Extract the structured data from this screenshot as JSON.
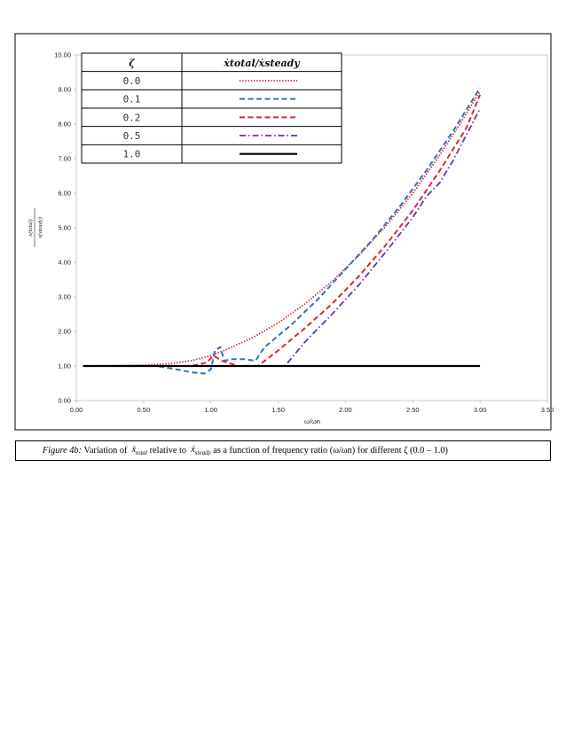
{
  "chart_data": {
    "type": "line",
    "title": "",
    "xlabel": "ω/ωn",
    "ylabel_num": "x(total)",
    "ylabel_den": "x(steady)",
    "xlim": [
      0,
      3.5
    ],
    "ylim": [
      0,
      10
    ],
    "xticks": [
      "0.00",
      "0.50",
      "1.00",
      "1.50",
      "2.00",
      "2.50",
      "3.00",
      "3.50"
    ],
    "yticks": [
      "0.00",
      "1.00",
      "2.00",
      "3.00",
      "4.00",
      "5.00",
      "6.00",
      "7.00",
      "8.00",
      "9.00",
      "10.00"
    ],
    "legend_header": {
      "col1": "ζ",
      "col2": "ẋtotal/ẋsteady"
    },
    "legend_placement": "top-left",
    "series": [
      {
        "name": "0.0",
        "color": "#c0282d",
        "style": "dotted",
        "x": [
          0.05,
          0.5,
          0.7,
          0.85,
          1.0,
          1.1,
          1.3,
          1.5,
          1.7,
          1.9,
          2.1,
          2.3,
          2.5,
          2.7,
          2.85,
          3.0
        ],
        "y": [
          1.0,
          1.02,
          1.07,
          1.15,
          1.3,
          1.45,
          1.8,
          2.25,
          2.8,
          3.45,
          4.2,
          5.05,
          6.0,
          7.1,
          8.0,
          8.95
        ]
      },
      {
        "name": "0.1",
        "color": "#2e75b6",
        "style": "dashed",
        "x": [
          0.05,
          0.6,
          0.78,
          0.85,
          0.95,
          1.0,
          1.03,
          1.07,
          1.1,
          1.15,
          1.25,
          1.33,
          1.4,
          1.6,
          1.8,
          2.0,
          2.2,
          2.4,
          2.6,
          2.8,
          3.0
        ],
        "y": [
          1.0,
          1.0,
          0.88,
          0.82,
          0.78,
          0.9,
          1.45,
          1.55,
          1.15,
          1.2,
          1.2,
          1.15,
          1.55,
          2.2,
          2.95,
          3.8,
          4.65,
          5.6,
          6.65,
          7.8,
          9.05
        ]
      },
      {
        "name": "0.2",
        "color": "#e0262c",
        "style": "dashed",
        "x": [
          0.05,
          0.85,
          0.97,
          1.02,
          1.08,
          1.2,
          1.35,
          1.5,
          1.7,
          1.9,
          2.1,
          2.3,
          2.5,
          2.7,
          2.9,
          3.0
        ],
        "y": [
          1.0,
          1.0,
          1.1,
          1.3,
          1.15,
          1.0,
          1.0,
          1.45,
          2.1,
          2.8,
          3.6,
          4.5,
          5.5,
          6.65,
          7.9,
          8.85
        ]
      },
      {
        "name": "0.5",
        "color": "#7030a0",
        "style": "dashdot",
        "x": [
          0.05,
          1.0,
          1.55,
          1.7,
          1.9,
          2.1,
          2.3,
          2.5,
          2.6,
          2.7,
          2.8,
          2.9,
          3.0
        ],
        "y": [
          1.0,
          1.0,
          1.0,
          1.7,
          2.5,
          3.35,
          4.3,
          5.3,
          5.9,
          6.3,
          6.95,
          7.7,
          8.45
        ]
      },
      {
        "name": "1.0",
        "color": "#000000",
        "style": "solid",
        "x": [
          0.05,
          3.0
        ],
        "y": [
          1.0,
          1.0
        ]
      }
    ]
  },
  "caption": {
    "lead": "Figure 4b:",
    "t1": "Variation of",
    "m1": "ẋ",
    "m1sub": "total",
    "t2": "relative to",
    "m2": "ẋ",
    "m2sub": "steady",
    "t3": "as a function of frequency ratio (ω/ωn) for different ζ (0.0 – 1.0)"
  }
}
